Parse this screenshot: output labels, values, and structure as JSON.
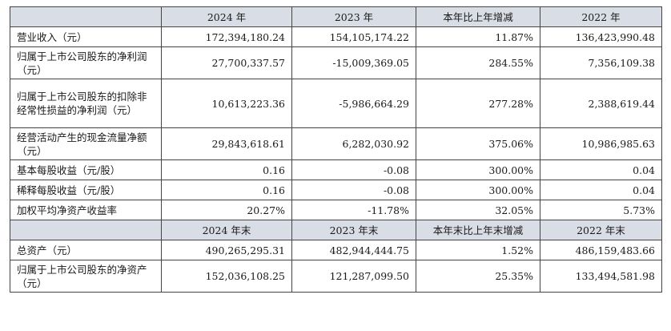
{
  "header1": [
    "2024 年",
    "2023 年",
    "本年比上年增减",
    "2022 年"
  ],
  "header2": [
    "2024 年末",
    "2023 年末",
    "本年末比上年末增减",
    "2022 年末"
  ],
  "rows1": [
    {
      "label": "营业收入（元）",
      "values": [
        "172,394,180.24",
        "154,105,174.22",
        "11.87%",
        "136,423,990.48"
      ]
    },
    {
      "label": "归属于上市公司股东的净利润（元）",
      "values": [
        "27,700,337.57",
        "-15,009,369.05",
        "284.55%",
        "7,356,109.38"
      ]
    },
    {
      "label": "归属于上市公司股东的扣除非经常性损益的净利润（元）",
      "values": [
        "10,613,223.36",
        "-5,986,664.29",
        "277.28%",
        "2,388,619.44"
      ]
    },
    {
      "label": "经营活动产生的现金流量净额（元）",
      "values": [
        "29,843,618.61",
        "6,282,030.92",
        "375.06%",
        "10,986,985.63"
      ]
    },
    {
      "label": "基本每股收益（元/股）",
      "values": [
        "0.16",
        "-0.08",
        "300.00%",
        "0.04"
      ]
    },
    {
      "label": "稀释每股收益（元/股）",
      "values": [
        "0.16",
        "-0.08",
        "300.00%",
        "0.04"
      ]
    },
    {
      "label": "加权平均净资产收益率",
      "values": [
        "20.27%",
        "-11.78%",
        "32.05%",
        "5.73%"
      ]
    }
  ],
  "rows2": [
    {
      "label": "总资产（元）",
      "values": [
        "490,265,295.31",
        "482,944,444.75",
        "1.52%",
        "486,159,483.66"
      ]
    },
    {
      "label": "归属于上市公司股东的净资产（元）",
      "values": [
        "152,036,108.25",
        "121,287,099.50",
        "25.35%",
        "133,494,581.98"
      ]
    }
  ]
}
